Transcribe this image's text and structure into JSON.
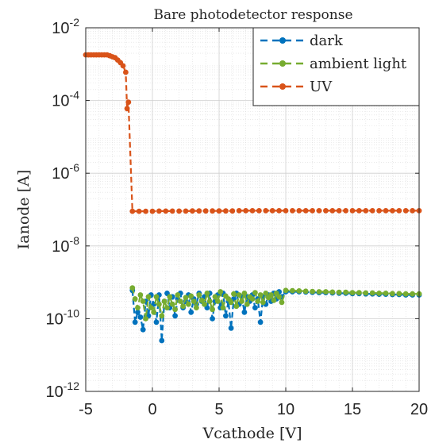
{
  "chart_data": {
    "type": "line",
    "title": "Bare photodetector response",
    "xlabel": "Vcathode [V]",
    "ylabel": "Ianode [A]",
    "xlim": [
      -5,
      20
    ],
    "ylim": [
      1e-12,
      0.01
    ],
    "yscale": "log",
    "xticks": [
      -5,
      0,
      5,
      10,
      15,
      20
    ],
    "xtick_labels": [
      "-5",
      "0",
      "5",
      "10",
      "15",
      "20"
    ],
    "yticks": [
      1e-12,
      1e-10,
      1e-08,
      1e-06,
      0.0001,
      0.01
    ],
    "ytick_labels": [
      {
        "base": "10",
        "exp": "-12"
      },
      {
        "base": "10",
        "exp": "-10"
      },
      {
        "base": "10",
        "exp": "-8"
      },
      {
        "base": "10",
        "exp": "-6"
      },
      {
        "base": "10",
        "exp": "-4"
      },
      {
        "base": "10",
        "exp": "-2"
      }
    ],
    "grid": true,
    "minor_grid": true,
    "legend_position": "top-right",
    "series": [
      {
        "name": "dark",
        "color": "#0072BD",
        "line_style": "dashed",
        "marker": "circle",
        "x": [
          -1.5,
          -1.3,
          -1.1,
          -0.9,
          -0.7,
          -0.5,
          -0.3,
          -0.1,
          0.1,
          0.3,
          0.5,
          0.7,
          0.9,
          1.1,
          1.3,
          1.5,
          1.7,
          1.9,
          2.1,
          2.3,
          2.5,
          2.7,
          2.9,
          3.1,
          3.3,
          3.5,
          3.7,
          3.9,
          4.1,
          4.3,
          4.5,
          4.7,
          4.9,
          5.1,
          5.3,
          5.5,
          5.7,
          5.9,
          6.1,
          6.3,
          6.5,
          6.7,
          6.9,
          7.1,
          7.3,
          7.5,
          7.7,
          7.9,
          8.1,
          8.3,
          8.5,
          8.7,
          8.9,
          9.1,
          9.3,
          9.5,
          9.7,
          10.0,
          10.5,
          11.0,
          11.5,
          12.0,
          12.5,
          13.0,
          13.5,
          14.0,
          14.5,
          15.0,
          15.5,
          16.0,
          16.5,
          17.0,
          17.5,
          18.0,
          18.5,
          19.0,
          19.5,
          20.0
        ],
        "y": [
          6e-10,
          8e-11,
          1.5e-10,
          1.1e-10,
          5e-11,
          3e-10,
          1.2e-10,
          4.5e-10,
          2.5e-10,
          8e-11,
          4.5e-10,
          2.5e-11,
          3e-10,
          5e-10,
          2e-10,
          4e-10,
          1.2e-10,
          3.5e-10,
          5e-10,
          2e-10,
          3e-10,
          4.5e-10,
          1.5e-10,
          3.5e-10,
          2.5e-10,
          5e-10,
          3e-10,
          4e-10,
          2e-10,
          5e-10,
          1e-10,
          3e-10,
          4.5e-10,
          2e-10,
          5e-10,
          1.2e-10,
          3e-10,
          5.5e-11,
          3.5e-10,
          5e-10,
          2.5e-10,
          4e-10,
          1.5e-10,
          4e-10,
          3e-10,
          4.5e-10,
          2e-10,
          3.5e-10,
          8e-11,
          4e-10,
          2.5e-10,
          4.5e-10,
          3e-10,
          5e-10,
          3.5e-10,
          5.5e-10,
          4e-10,
          5.5e-10,
          5.5e-10,
          5.5e-10,
          5.4e-10,
          5.3e-10,
          5.2e-10,
          5.2e-10,
          5.1e-10,
          5e-10,
          5e-10,
          4.9e-10,
          4.9e-10,
          4.8e-10,
          4.8e-10,
          4.7e-10,
          4.7e-10,
          4.6e-10,
          4.6e-10,
          4.5e-10,
          4.5e-10,
          4.5e-10
        ]
      },
      {
        "name": "ambient light",
        "color": "#77AC30",
        "line_style": "dashed",
        "marker": "circle",
        "x": [
          -1.5,
          -1.3,
          -1.1,
          -0.9,
          -0.7,
          -0.5,
          -0.3,
          -0.1,
          0.1,
          0.3,
          0.5,
          0.7,
          0.9,
          1.1,
          1.3,
          1.5,
          1.7,
          1.9,
          2.1,
          2.3,
          2.5,
          2.7,
          2.9,
          3.1,
          3.3,
          3.5,
          3.7,
          3.9,
          4.1,
          4.3,
          4.5,
          4.7,
          4.9,
          5.1,
          5.3,
          5.5,
          5.7,
          5.9,
          6.1,
          6.3,
          6.5,
          6.7,
          6.9,
          7.1,
          7.3,
          7.5,
          7.7,
          7.9,
          8.1,
          8.3,
          8.5,
          8.7,
          8.9,
          9.1,
          9.3,
          9.5,
          9.7,
          10.0,
          10.5,
          11.0,
          11.5,
          12.0,
          12.5,
          13.0,
          13.5,
          14.0,
          14.5,
          15.0,
          15.5,
          16.0,
          16.5,
          17.0,
          17.5,
          18.0,
          18.5,
          19.0,
          19.5,
          20.0
        ],
        "y": [
          7e-10,
          3.5e-10,
          2e-10,
          4.5e-10,
          3e-10,
          1e-10,
          4e-10,
          2e-10,
          1.5e-10,
          4e-10,
          2.5e-10,
          1.2e-10,
          3e-10,
          2e-10,
          4e-10,
          2.5e-10,
          1.8e-10,
          4.5e-10,
          3e-10,
          2.2e-10,
          3.8e-10,
          2.5e-10,
          4.2e-10,
          3e-10,
          2e-10,
          4.5e-10,
          3.2e-10,
          2.5e-10,
          5e-10,
          3e-10,
          1.8e-10,
          4e-10,
          3e-10,
          5.5e-10,
          2e-10,
          4.2e-10,
          3.5e-10,
          2.8e-10,
          4.8e-10,
          2.2e-10,
          4.5e-10,
          3e-10,
          5e-10,
          2.5e-10,
          4e-10,
          3.5e-10,
          5.2e-10,
          3e-10,
          4.5e-10,
          2.8e-10,
          5e-10,
          3.8e-10,
          4.5e-10,
          3.2e-10,
          5e-10,
          4e-10,
          2.8e-10,
          6e-10,
          5.9e-10,
          5.8e-10,
          5.7e-10,
          5.6e-10,
          5.5e-10,
          5.5e-10,
          5.4e-10,
          5.3e-10,
          5.3e-10,
          5.2e-10,
          5.2e-10,
          5.1e-10,
          5.1e-10,
          5e-10,
          5e-10,
          4.9e-10,
          4.9e-10,
          4.8e-10,
          4.8e-10,
          4.8e-10
        ]
      },
      {
        "name": "UV",
        "color": "#D95319",
        "line_style": "dashed",
        "marker": "circle",
        "x": [
          -5.0,
          -4.8,
          -4.6,
          -4.4,
          -4.2,
          -4.0,
          -3.8,
          -3.6,
          -3.4,
          -3.2,
          -3.0,
          -2.8,
          -2.6,
          -2.4,
          -2.2,
          -2.0,
          -1.9,
          -1.8,
          -1.5,
          -1.0,
          -0.5,
          0.0,
          0.5,
          1.0,
          1.5,
          2.0,
          2.5,
          3.0,
          3.5,
          4.0,
          4.5,
          5.0,
          5.5,
          6.0,
          6.5,
          7.0,
          7.5,
          8.0,
          8.5,
          9.0,
          9.5,
          10.0,
          10.5,
          11.0,
          11.5,
          12.0,
          12.5,
          13.0,
          13.5,
          14.0,
          14.5,
          15.0,
          15.5,
          16.0,
          16.5,
          17.0,
          17.5,
          18.0,
          18.5,
          19.0,
          19.5,
          20.0
        ],
        "y": [
          0.0018,
          0.0018,
          0.0018,
          0.0018,
          0.0018,
          0.0018,
          0.0018,
          0.0018,
          0.0018,
          0.0017,
          0.0016,
          0.0015,
          0.0013,
          0.0011,
          0.0009,
          0.0006,
          6e-05,
          9e-05,
          9e-08,
          9e-08,
          9e-08,
          9e-08,
          9.1e-08,
          9.1e-08,
          9.1e-08,
          9.1e-08,
          9.1e-08,
          9.2e-08,
          9.2e-08,
          9.2e-08,
          9.2e-08,
          9.2e-08,
          9.2e-08,
          9.2e-08,
          9.3e-08,
          9.3e-08,
          9.3e-08,
          9.3e-08,
          9.3e-08,
          9.3e-08,
          9.3e-08,
          9.3e-08,
          9.3e-08,
          9.3e-08,
          9.3e-08,
          9.3e-08,
          9.3e-08,
          9.3e-08,
          9.3e-08,
          9.3e-08,
          9.3e-08,
          9.3e-08,
          9.3e-08,
          9.3e-08,
          9.3e-08,
          9.3e-08,
          9.3e-08,
          9.3e-08,
          9.3e-08,
          9.3e-08,
          9.3e-08,
          9.3e-08
        ]
      }
    ]
  }
}
